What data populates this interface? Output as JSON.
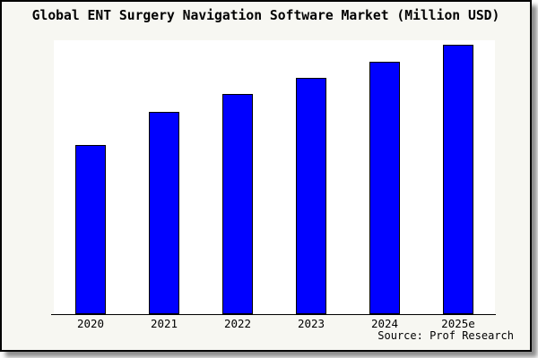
{
  "chart_data": {
    "type": "bar",
    "title": "Global ENT Surgery Navigation Software Market (Million USD)",
    "categories": [
      "2020",
      "2021",
      "2022",
      "2023",
      "2024",
      "2025e"
    ],
    "values": [
      62.8,
      75.3,
      81.8,
      87.8,
      93.7,
      100
    ],
    "values_note": "No y-axis, tick values or gridlines are visible in the chart; values are bar heights normalized to 2025e = 100.",
    "unit": "Million USD",
    "ylim": [
      0,
      101.8
    ],
    "xlabel": "",
    "ylabel": "",
    "y_axis_visible": false,
    "gridlines": false,
    "legend": null,
    "source_label": "Source: Prof Research",
    "bar_color": "#0000ff",
    "bar_edge_color": "#000000",
    "axis_color": "#000000",
    "figure_background": "#f7f7f2",
    "plot_background": "#ffffff",
    "frame_border_color": "#000000"
  }
}
